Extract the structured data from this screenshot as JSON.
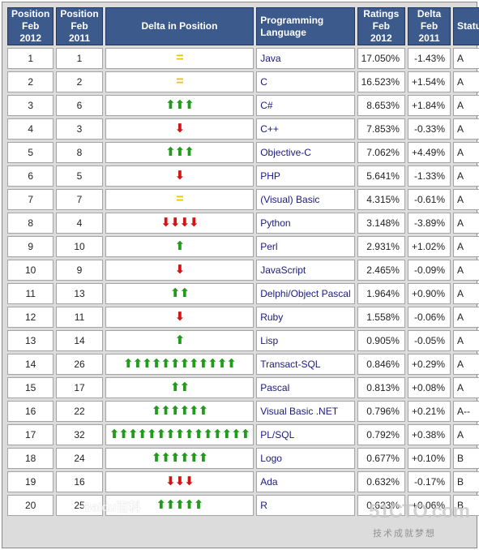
{
  "headers": {
    "pos2012": "Position Feb 2012",
    "pos2011": "Position Feb 2011",
    "delta_pos": "Delta in Position",
    "language": "Programming Language",
    "ratings": "Ratings Feb 2012",
    "delta_ratings": "Delta Feb 2011",
    "status": "Status"
  },
  "rows": [
    {
      "pos2012": "1",
      "pos2011": "1",
      "delta_pos": 0,
      "language": "Java",
      "ratings": "17.050%",
      "delta": "-1.43%",
      "status": "A"
    },
    {
      "pos2012": "2",
      "pos2011": "2",
      "delta_pos": 0,
      "language": "C",
      "ratings": "16.523%",
      "delta": "+1.54%",
      "status": "A"
    },
    {
      "pos2012": "3",
      "pos2011": "6",
      "delta_pos": 3,
      "language": "C#",
      "ratings": "8.653%",
      "delta": "+1.84%",
      "status": "A"
    },
    {
      "pos2012": "4",
      "pos2011": "3",
      "delta_pos": -1,
      "language": "C++",
      "ratings": "7.853%",
      "delta": "-0.33%",
      "status": "A"
    },
    {
      "pos2012": "5",
      "pos2011": "8",
      "delta_pos": 3,
      "language": "Objective-C",
      "ratings": "7.062%",
      "delta": "+4.49%",
      "status": "A"
    },
    {
      "pos2012": "6",
      "pos2011": "5",
      "delta_pos": -1,
      "language": "PHP",
      "ratings": "5.641%",
      "delta": "-1.33%",
      "status": "A"
    },
    {
      "pos2012": "7",
      "pos2011": "7",
      "delta_pos": 0,
      "language": "(Visual) Basic",
      "ratings": "4.315%",
      "delta": "-0.61%",
      "status": "A"
    },
    {
      "pos2012": "8",
      "pos2011": "4",
      "delta_pos": -4,
      "language": "Python",
      "ratings": "3.148%",
      "delta": "-3.89%",
      "status": "A"
    },
    {
      "pos2012": "9",
      "pos2011": "10",
      "delta_pos": 1,
      "language": "Perl",
      "ratings": "2.931%",
      "delta": "+1.02%",
      "status": "A"
    },
    {
      "pos2012": "10",
      "pos2011": "9",
      "delta_pos": -1,
      "language": "JavaScript",
      "ratings": "2.465%",
      "delta": "-0.09%",
      "status": "A"
    },
    {
      "pos2012": "11",
      "pos2011": "13",
      "delta_pos": 2,
      "language": "Delphi/Object Pascal",
      "ratings": "1.964%",
      "delta": "+0.90%",
      "status": "A"
    },
    {
      "pos2012": "12",
      "pos2011": "11",
      "delta_pos": -1,
      "language": "Ruby",
      "ratings": "1.558%",
      "delta": "-0.06%",
      "status": "A"
    },
    {
      "pos2012": "13",
      "pos2011": "14",
      "delta_pos": 1,
      "language": "Lisp",
      "ratings": "0.905%",
      "delta": "-0.05%",
      "status": "A"
    },
    {
      "pos2012": "14",
      "pos2011": "26",
      "delta_pos": 12,
      "language": "Transact-SQL",
      "ratings": "0.846%",
      "delta": "+0.29%",
      "status": "A"
    },
    {
      "pos2012": "15",
      "pos2011": "17",
      "delta_pos": 2,
      "language": "Pascal",
      "ratings": "0.813%",
      "delta": "+0.08%",
      "status": "A"
    },
    {
      "pos2012": "16",
      "pos2011": "22",
      "delta_pos": 6,
      "language": "Visual Basic .NET",
      "ratings": "0.796%",
      "delta": "+0.21%",
      "status": "A--"
    },
    {
      "pos2012": "17",
      "pos2011": "32",
      "delta_pos": 15,
      "language": "PL/SQL",
      "ratings": "0.792%",
      "delta": "+0.38%",
      "status": "A"
    },
    {
      "pos2012": "18",
      "pos2011": "24",
      "delta_pos": 6,
      "language": "Logo",
      "ratings": "0.677%",
      "delta": "+0.10%",
      "status": "B"
    },
    {
      "pos2012": "19",
      "pos2011": "16",
      "delta_pos": -3,
      "language": "Ada",
      "ratings": "0.632%",
      "delta": "-0.17%",
      "status": "B"
    },
    {
      "pos2012": "20",
      "pos2011": "25",
      "delta_pos": 5,
      "language": "R",
      "ratings": "0.623%",
      "delta": "+0.06%",
      "status": "B"
    }
  ],
  "icons": {
    "up": "up-arrow-icon",
    "down": "down-arrow-icon",
    "same": "equal-sign-icon"
  },
  "colors": {
    "header_bg": "#3c5a8c",
    "up": "#229a1c",
    "down": "#d41414",
    "same": "#e6c400"
  },
  "watermarks": {
    "baidu": "Baidu百科",
    "site": "51CTO.com",
    "site_sub": "技术成就梦想"
  }
}
